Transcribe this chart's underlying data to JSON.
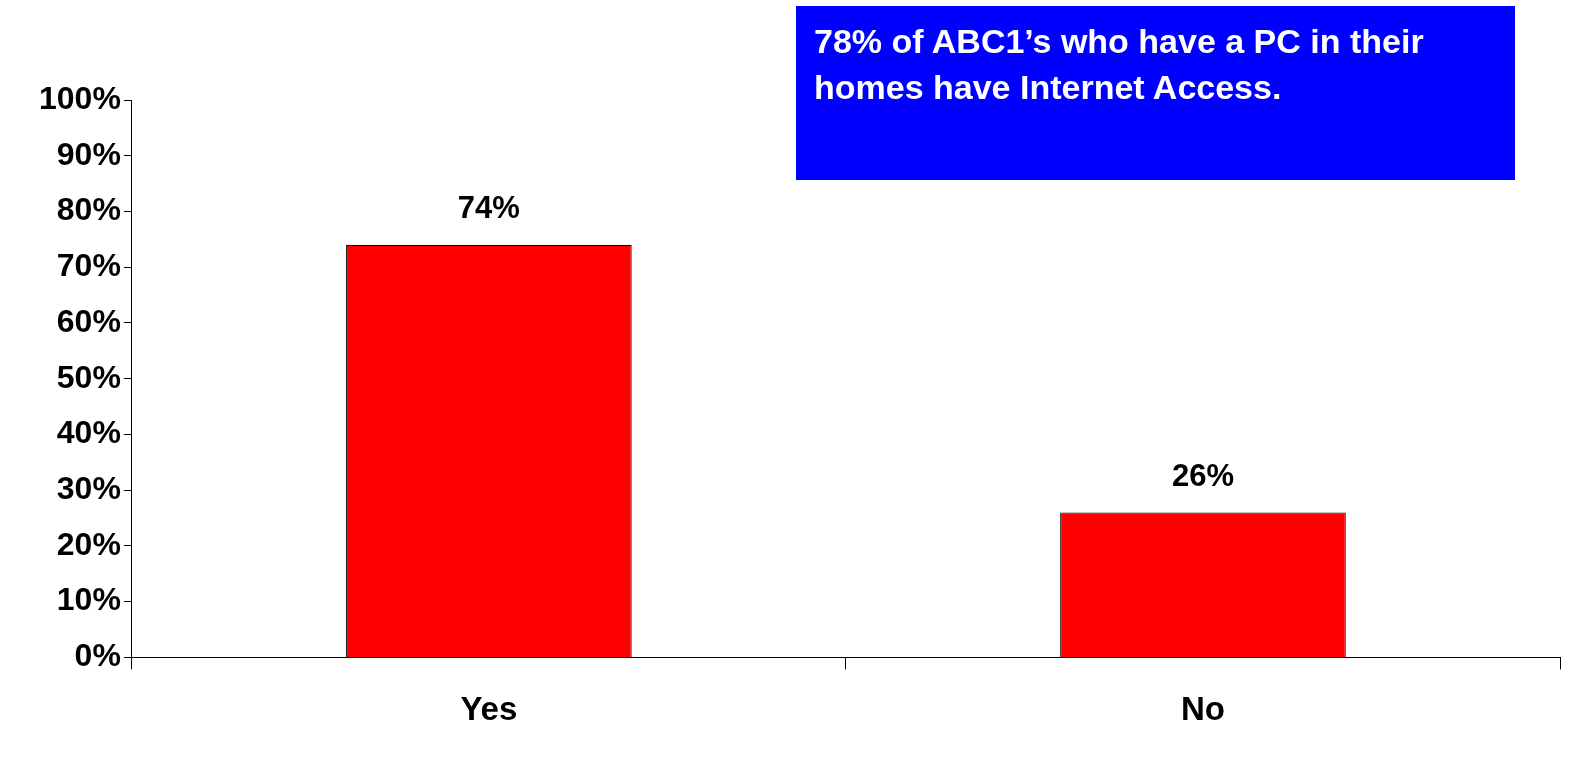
{
  "chart_data": {
    "type": "bar",
    "annotations": [
      "78% of ABC1’s who have a PC in their homes have Internet Access."
    ],
    "categories": [
      "Yes",
      "No"
    ],
    "values": [
      74,
      26
    ],
    "value_labels": [
      "74%",
      "26%"
    ],
    "color": "#ff0000",
    "ylim": [
      0,
      100
    ],
    "yticks": [
      {
        "value": 0,
        "label": "0%"
      },
      {
        "value": 10,
        "label": "10%"
      },
      {
        "value": 20,
        "label": "20%"
      },
      {
        "value": 30,
        "label": "30%"
      },
      {
        "value": 40,
        "label": "40%"
      },
      {
        "value": 50,
        "label": "50%"
      },
      {
        "value": 60,
        "label": "60%"
      },
      {
        "value": 70,
        "label": "70%"
      },
      {
        "value": 80,
        "label": "80%"
      },
      {
        "value": 90,
        "label": "90%"
      },
      {
        "value": 100,
        "label": "100%"
      }
    ]
  }
}
